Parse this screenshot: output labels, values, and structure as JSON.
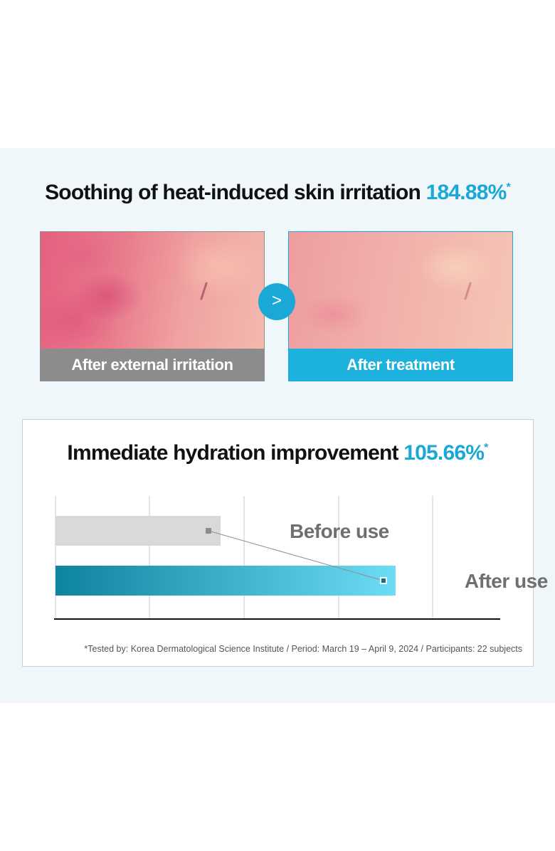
{
  "section1": {
    "title": "Soothing of heat-induced skin irritation",
    "value": "184.88%",
    "asterisk": "*",
    "before_label": "After external irritation",
    "after_label": "After treatment",
    "arrow": ">"
  },
  "section2": {
    "title": "Immediate hydration improvement",
    "value": "105.66%",
    "asterisk": "*"
  },
  "chart_data": {
    "type": "bar",
    "orientation": "horizontal",
    "categories": [
      "Before use",
      "After use"
    ],
    "values": [
      1.0,
      2.06
    ],
    "grid": true,
    "colors": {
      "before": "#d8d9db",
      "after_start": "#0e839e",
      "after_end": "#6ddcf5",
      "accent": "#1aa9d6"
    }
  },
  "footnote": "*Tested by: Korea Dermatological Science Institute / Period: March 19 – April 9, 2024 / Participants: 22 subjects"
}
